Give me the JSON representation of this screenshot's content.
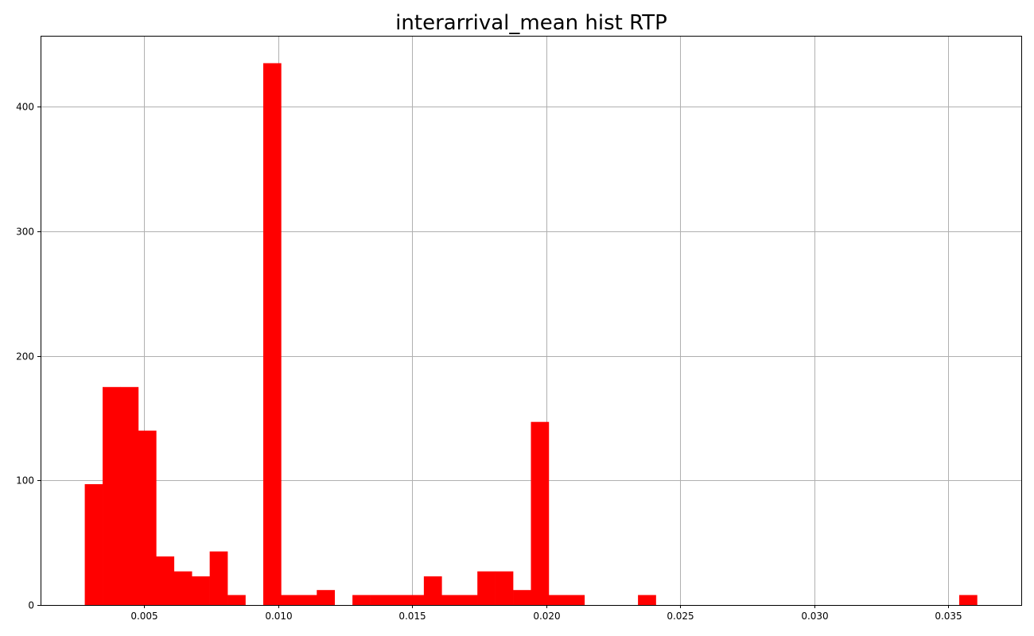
{
  "chart_data": {
    "type": "bar",
    "title": "interarrival_mean hist RTP",
    "xlabel": "",
    "ylabel": "",
    "bar_color": "#ff0000",
    "grid": true,
    "xlim": [
      0.00113,
      0.03776
    ],
    "ylim": [
      0,
      457
    ],
    "x_ticks": [
      0.005,
      0.01,
      0.015,
      0.02,
      0.025,
      0.03,
      0.035
    ],
    "x_tick_labels": [
      "0.005",
      "0.010",
      "0.015",
      "0.020",
      "0.025",
      "0.030",
      "0.035"
    ],
    "y_ticks": [
      0,
      100,
      200,
      300,
      400
    ],
    "y_tick_labels": [
      "0",
      "100",
      "200",
      "300",
      "400"
    ],
    "bin_start": 0.00278,
    "bin_width": 0.000666,
    "counts": [
      97,
      175,
      175,
      140,
      39,
      27,
      23,
      43,
      8,
      0,
      435,
      8,
      8,
      12,
      0,
      8,
      8,
      8,
      8,
      23,
      8,
      8,
      27,
      27,
      12,
      147,
      8,
      8,
      0,
      0,
      0,
      8,
      0,
      0,
      0,
      0,
      0,
      0,
      0,
      0,
      0,
      0,
      0,
      0,
      0,
      0,
      0,
      0,
      0,
      8
    ]
  }
}
